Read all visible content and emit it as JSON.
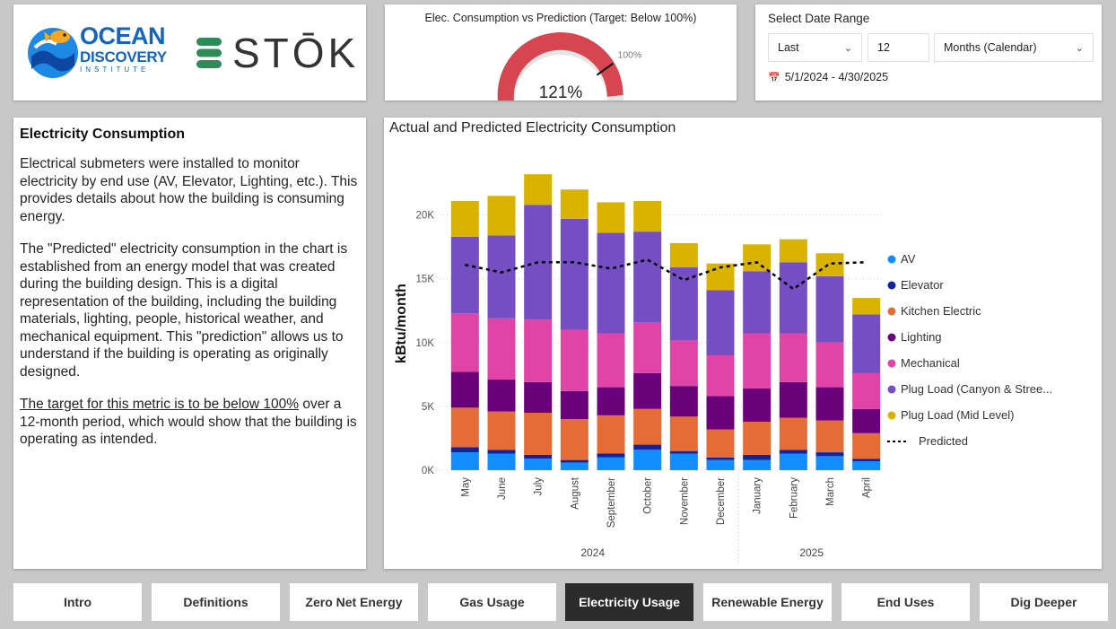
{
  "logos": {
    "ocean_line1": "OCEAN",
    "ocean_line2": "DISCOVERY",
    "ocean_line3": "INSTITUTE",
    "stok": "STŌK"
  },
  "gauge": {
    "title": "Elec. Consumption vs Prediction (Target: Below 100%)",
    "value_label": "121%",
    "target_label": "100%",
    "value": 121,
    "target": 100,
    "max": 125,
    "fill_color": "#d64550"
  },
  "date_range": {
    "title": "Select Date Range",
    "mode": "Last",
    "count": "12",
    "unit": "Months (Calendar)",
    "range_text": "5/1/2024 - 4/30/2025"
  },
  "text_panel": {
    "title": "Electricity Consumption",
    "para1": "Electrical submeters were installed to monitor electricity by end use (AV, Elevator, Lighting, etc.). This provides details about how the building is consuming energy.",
    "para2": "The \"Predicted\" electricity consumption in the chart is established from an energy model that was created during the building design. This is a digital representation of the building, including the building materials, lighting, people, historical weather, and mechanical equipment. This \"prediction\" allows us to understand if the building is operating as originally designed.",
    "para3_underlined": "The target for this metric is to be below 100%",
    "para3_rest": " over a 12-month period, which would show that the building is operating as intended."
  },
  "chart_data": {
    "type": "bar",
    "stacked": true,
    "title": "Actual and Predicted Electricity Consumption",
    "ylabel": "kBtu/month",
    "xlabel": "",
    "ylim": [
      0,
      23000
    ],
    "yticks": [
      0,
      5000,
      10000,
      15000,
      20000
    ],
    "ytick_labels": [
      "0K",
      "5K",
      "10K",
      "15K",
      "20K"
    ],
    "categories": [
      "May",
      "June",
      "July",
      "August",
      "September",
      "October",
      "November",
      "December",
      "January",
      "February",
      "March",
      "April"
    ],
    "year_groups": [
      {
        "label": "2024",
        "start": 0,
        "end": 7
      },
      {
        "label": "2025",
        "start": 8,
        "end": 11
      }
    ],
    "series": [
      {
        "name": "AV",
        "color": "#118dff",
        "values": [
          1400,
          1300,
          900,
          600,
          1000,
          1600,
          1300,
          800,
          800,
          1300,
          1100,
          700
        ]
      },
      {
        "name": "Elevator",
        "color": "#12239e",
        "values": [
          400,
          300,
          300,
          200,
          300,
          400,
          200,
          200,
          400,
          300,
          300,
          200
        ]
      },
      {
        "name": "Kitchen Electric",
        "color": "#e66c37",
        "values": [
          3100,
          3000,
          3300,
          3200,
          3000,
          2800,
          2700,
          2200,
          2600,
          2500,
          2500,
          2000
        ]
      },
      {
        "name": "Lighting",
        "color": "#6b007b",
        "values": [
          2800,
          2500,
          2400,
          2200,
          2200,
          2800,
          2400,
          2600,
          2600,
          2800,
          2600,
          1900
        ]
      },
      {
        "name": "Mechanical",
        "color": "#e044a7",
        "values": [
          4600,
          4800,
          4900,
          4800,
          4200,
          4000,
          3600,
          3200,
          4300,
          3800,
          3500,
          2800
        ]
      },
      {
        "name": "Plug Load (Canyon & Stree...",
        "color": "#744ec2",
        "values": [
          6000,
          6500,
          9000,
          8700,
          7900,
          7100,
          5700,
          5100,
          4900,
          5600,
          5200,
          4600
        ]
      },
      {
        "name": "Plug Load (Mid Level)",
        "color": "#d9b300",
        "values": [
          2800,
          3100,
          2400,
          2300,
          2400,
          2400,
          1900,
          2100,
          2100,
          1800,
          1800,
          1300
        ]
      }
    ],
    "predicted": {
      "name": "Predicted",
      "color": "#000000",
      "values": [
        16100,
        15500,
        16300,
        16300,
        15800,
        16500,
        14900,
        15900,
        16300,
        14200,
        16200,
        16300
      ]
    }
  },
  "tabs": [
    {
      "label": "Intro",
      "active": false
    },
    {
      "label": "Definitions",
      "active": false
    },
    {
      "label": "Zero Net Energy",
      "active": false
    },
    {
      "label": "Gas Usage",
      "active": false
    },
    {
      "label": "Electricity Usage",
      "active": true
    },
    {
      "label": "Renewable Energy",
      "active": false
    },
    {
      "label": "End Uses",
      "active": false
    },
    {
      "label": "Dig Deeper",
      "active": false
    }
  ]
}
